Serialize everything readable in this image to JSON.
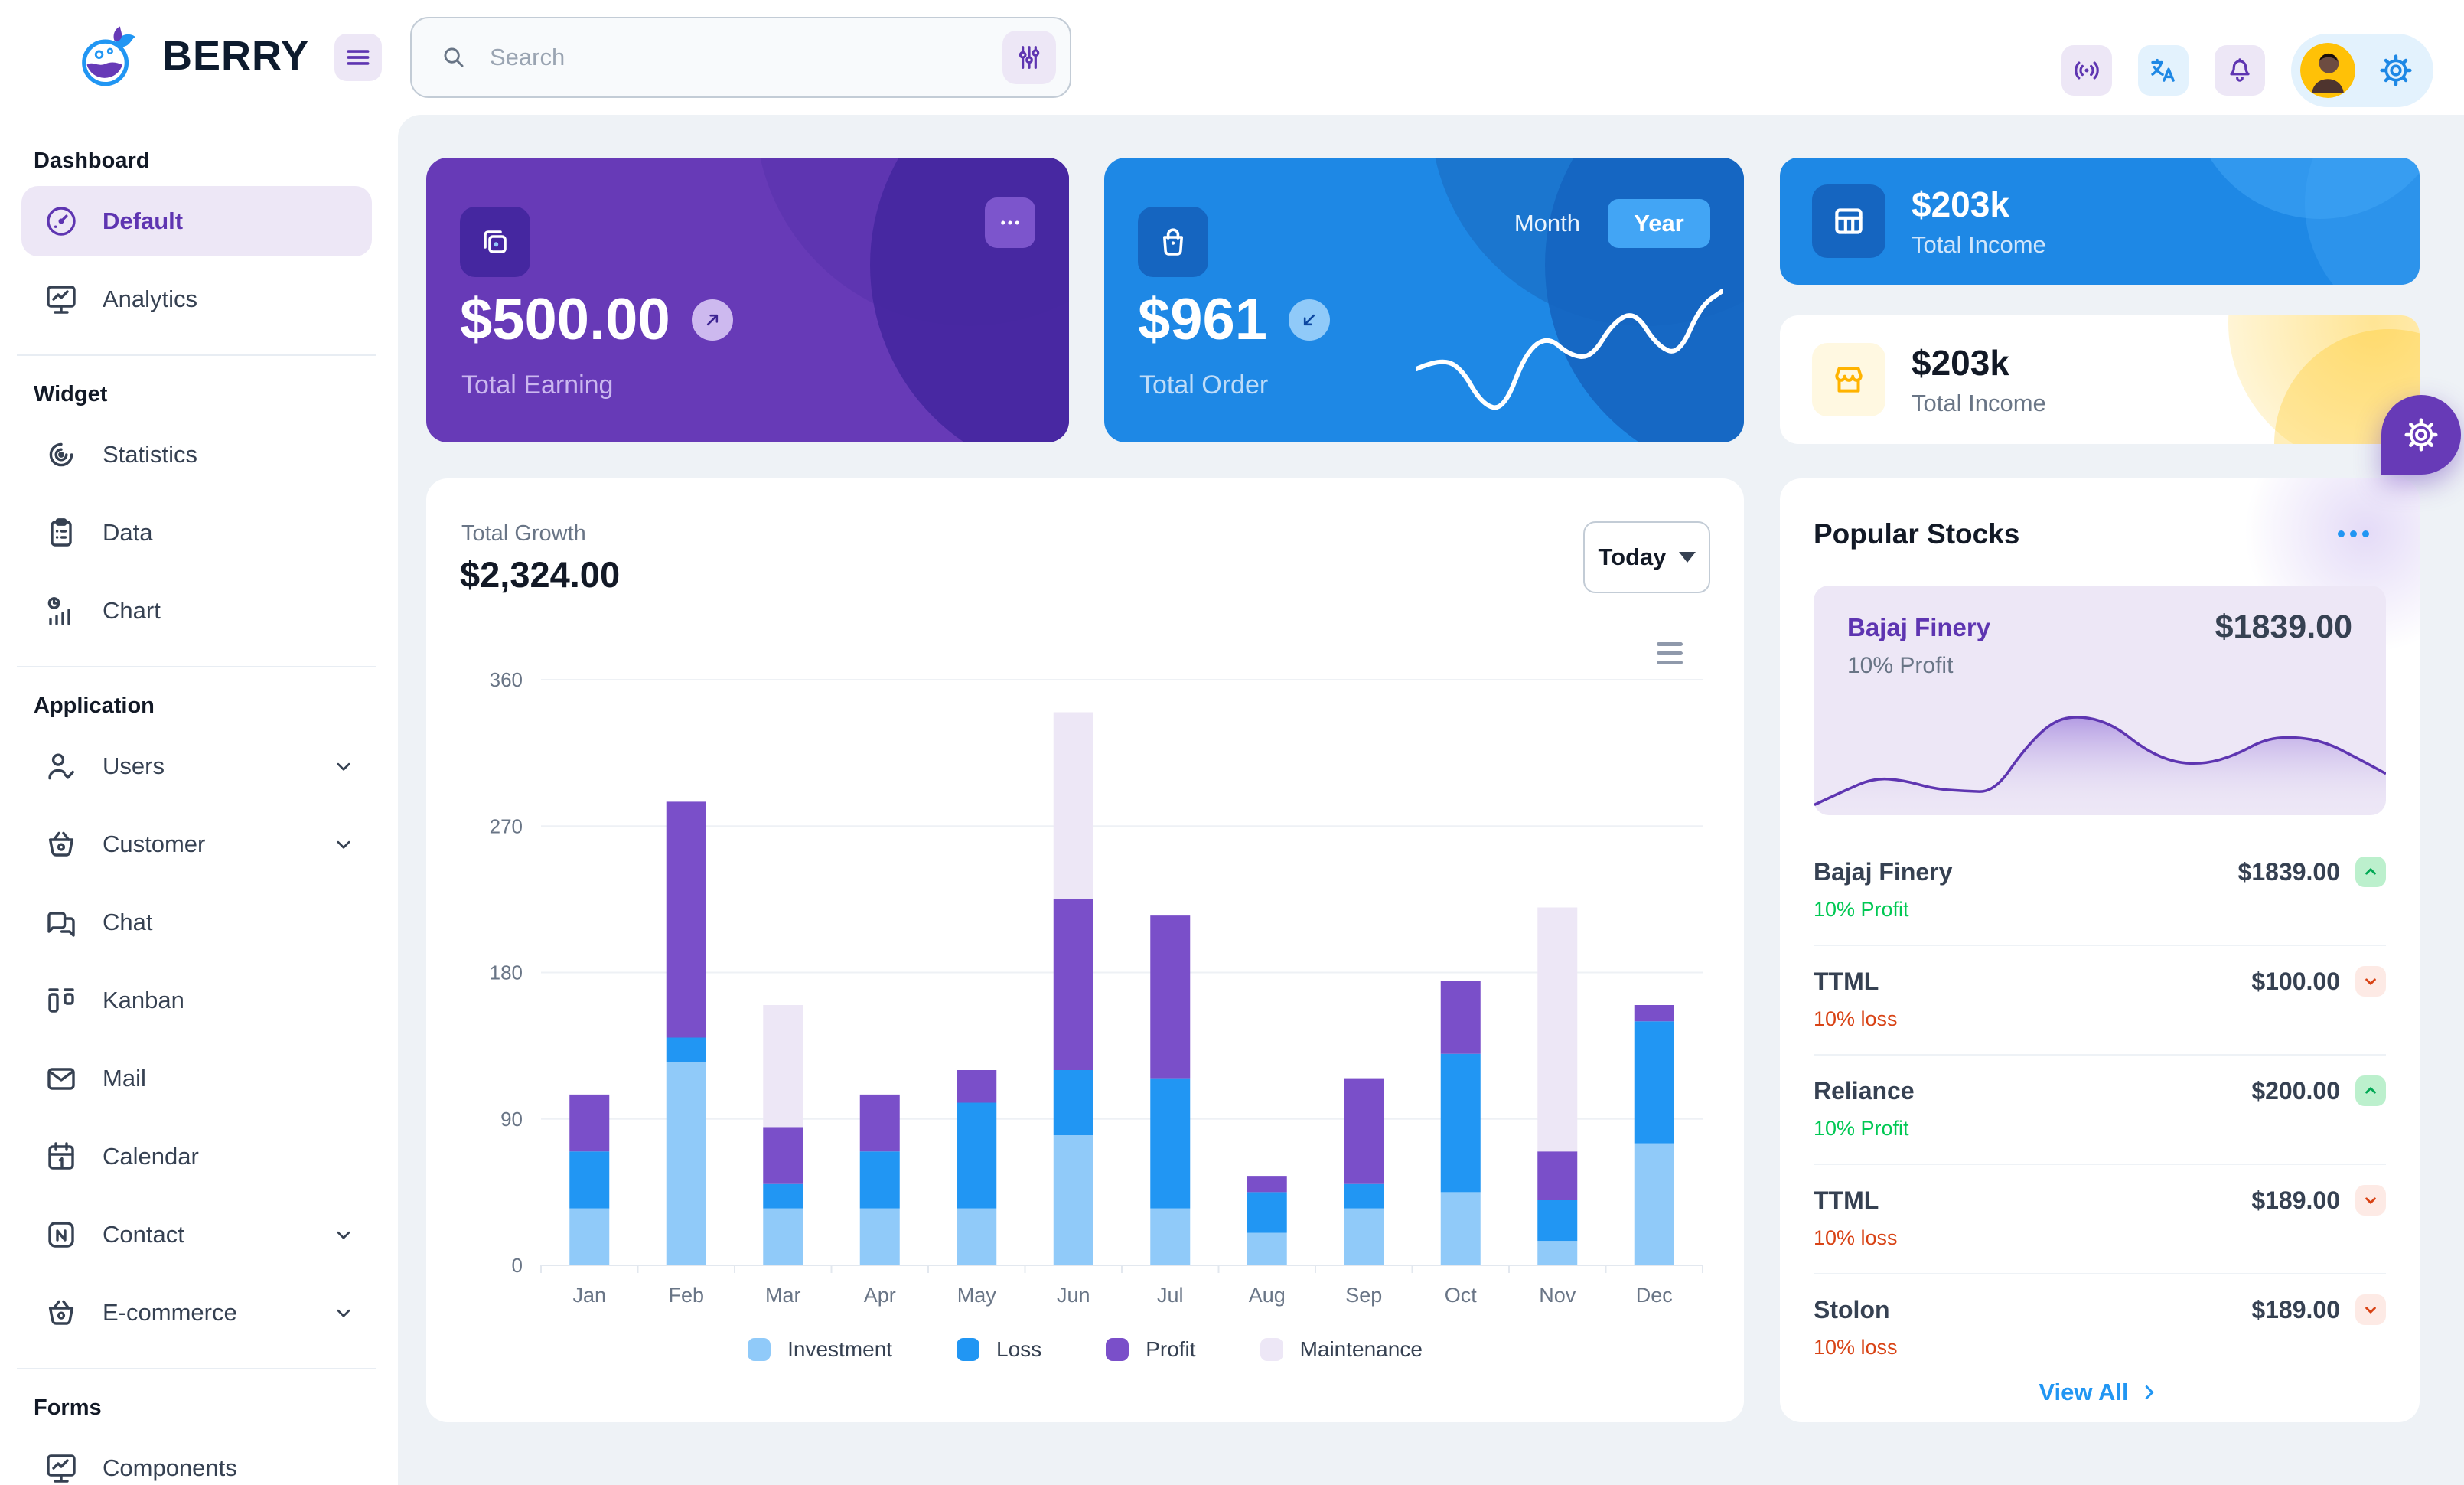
{
  "brand": {
    "name": "BERRY"
  },
  "header": {
    "search": {
      "placeholder": "Search"
    }
  },
  "sidebar": {
    "sections": [
      {
        "title": "Dashboard",
        "items": [
          {
            "label": "Default",
            "icon": "gauge",
            "active": true
          },
          {
            "label": "Analytics",
            "icon": "device-analytics"
          }
        ]
      },
      {
        "title": "Widget",
        "items": [
          {
            "label": "Statistics",
            "icon": "chart-arcs"
          },
          {
            "label": "Data",
            "icon": "clipboard-list"
          },
          {
            "label": "Chart",
            "icon": "chart-infographic"
          }
        ]
      },
      {
        "title": "Application",
        "items": [
          {
            "label": "Users",
            "icon": "user-check",
            "chevron": true
          },
          {
            "label": "Customer",
            "icon": "basket",
            "chevron": true
          },
          {
            "label": "Chat",
            "icon": "message"
          },
          {
            "label": "Kanban",
            "icon": "layout-kanban"
          },
          {
            "label": "Mail",
            "icon": "mail"
          },
          {
            "label": "Calendar",
            "icon": "calendar"
          },
          {
            "label": "Contact",
            "icon": "nfc",
            "chevron": true
          },
          {
            "label": "E-commerce",
            "icon": "basket",
            "chevron": true
          }
        ]
      },
      {
        "title": "Forms",
        "items": [
          {
            "label": "Components",
            "icon": "device-analytics"
          }
        ]
      }
    ]
  },
  "cards": {
    "earning": {
      "value": "$500.00",
      "label": "Total Earning"
    },
    "order": {
      "value": "$961",
      "label": "Total Order",
      "toggle": {
        "options": [
          "Month",
          "Year"
        ],
        "active": "Year"
      }
    },
    "income_primary": {
      "value": "$203k",
      "label": "Total Income"
    },
    "income_warning": {
      "value": "$203k",
      "label": "Total Income"
    }
  },
  "growth": {
    "label": "Total Growth",
    "value": "$2,324.00",
    "range_selector": "Today"
  },
  "stocks": {
    "title": "Popular Stocks",
    "featured": {
      "name": "Bajaj Finery",
      "price": "$1839.00",
      "change": "10% Profit"
    },
    "rows": [
      {
        "name": "Bajaj Finery",
        "price": "$1839.00",
        "change": "10% Profit",
        "up": true
      },
      {
        "name": "TTML",
        "price": "$100.00",
        "change": "10% loss",
        "up": false
      },
      {
        "name": "Reliance",
        "price": "$200.00",
        "change": "10% Profit",
        "up": true
      },
      {
        "name": "TTML",
        "price": "$189.00",
        "change": "10% loss",
        "up": false
      },
      {
        "name": "Stolon",
        "price": "$189.00",
        "change": "10% loss",
        "up": false
      }
    ],
    "view_all": "View All"
  },
  "chart_data": [
    {
      "id": "total-growth",
      "type": "bar",
      "stacked": true,
      "title": "Total Growth",
      "categories": [
        "Jan",
        "Feb",
        "Mar",
        "Apr",
        "May",
        "Jun",
        "Jul",
        "Aug",
        "Sep",
        "Oct",
        "Nov",
        "Dec"
      ],
      "series": [
        {
          "name": "Investment",
          "color": "#90caf9",
          "values": [
            35,
            125,
            35,
            35,
            35,
            80,
            35,
            20,
            35,
            45,
            15,
            75
          ]
        },
        {
          "name": "Loss",
          "color": "#2196f3",
          "values": [
            35,
            15,
            15,
            35,
            65,
            40,
            80,
            25,
            15,
            85,
            25,
            75
          ]
        },
        {
          "name": "Profit",
          "color": "#7a4fc9",
          "values": [
            35,
            145,
            35,
            35,
            20,
            105,
            100,
            10,
            65,
            45,
            30,
            10
          ]
        },
        {
          "name": "Maintenance",
          "color": "#ede7f6",
          "values": [
            0,
            0,
            75,
            0,
            0,
            115,
            0,
            0,
            0,
            0,
            150,
            0
          ]
        }
      ],
      "xlabel": "",
      "ylabel": "",
      "ylim": [
        0,
        360
      ],
      "yticks": [
        0,
        90,
        180,
        270,
        360
      ],
      "grid": "horizontal",
      "legend_position": "bottom"
    },
    {
      "id": "order-spark",
      "type": "line",
      "title": "Total Order trend",
      "color": "#ffffff",
      "values": [
        38,
        45,
        40,
        12,
        8,
        50,
        62,
        48,
        46,
        72,
        80,
        55,
        48,
        84,
        95
      ]
    },
    {
      "id": "stock-area",
      "type": "area",
      "title": "Bajaj Finery price trend",
      "color": "#5e35b1",
      "fill": "#b39ddb",
      "values": [
        5,
        18,
        30,
        28,
        20,
        18,
        17,
        57,
        84,
        87,
        78,
        56,
        44,
        43,
        51,
        66,
        68,
        63,
        49,
        34
      ]
    }
  ],
  "colors": {
    "purple": "#673ab7",
    "purple_dark": "#5e35b1",
    "purple_bg": "#ede7f6",
    "blue": "#1e88e5",
    "blue_dark": "#1565c0",
    "blue_bg": "#e3f2fd",
    "gain_green": "#00c853",
    "loss_red": "#d84315",
    "link_blue": "#2196f3",
    "warning_yellow": "#ffc107",
    "main_bg": "#eef2f6"
  }
}
